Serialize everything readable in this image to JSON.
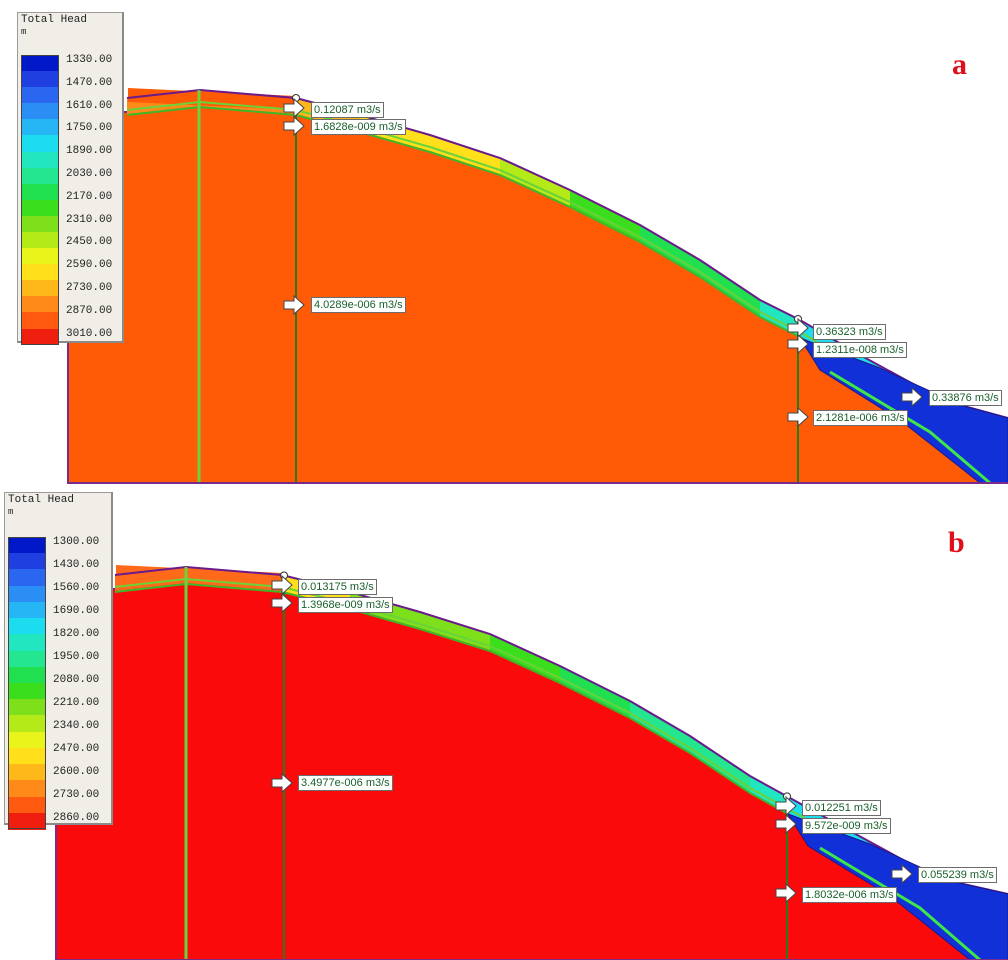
{
  "panels": [
    {
      "letter": "a",
      "legend": {
        "title": "Total Head",
        "unit": "m",
        "colors": [
          "#0018c8",
          "#1f3fe0",
          "#2b66f0",
          "#2a8ef5",
          "#26b6f6",
          "#1cdcf0",
          "#22e6c0",
          "#24e690",
          "#20e050",
          "#3ade1c",
          "#7ee01a",
          "#b4ea18",
          "#e8f41a",
          "#ffe01a",
          "#ffb81a",
          "#ff8a1a",
          "#ff5a10",
          "#f01e0e"
        ],
        "values": [
          "1330.00",
          "1470.00",
          "1610.00",
          "1750.00",
          "1890.00",
          "2030.00",
          "2170.00",
          "2310.00",
          "2450.00",
          "2590.00",
          "2730.00",
          "2870.00",
          "3010.00"
        ]
      },
      "fluxes": [
        "0.12087 m3/s",
        "1.6828e-009 m3/s",
        "4.0289e-006 m3/s",
        "0.36323 m3/s",
        "1.2311e-008 m3/s",
        "0.33876 m3/s",
        "2.1281e-006 m3/s"
      ],
      "main_fill": "#ff5a06",
      "cap_fill": "#ff5a06"
    },
    {
      "letter": "b",
      "legend": {
        "title": "Total Head",
        "unit": "m",
        "colors": [
          "#0018c8",
          "#1f3fe0",
          "#2b66f0",
          "#2a8ef5",
          "#26b6f6",
          "#1cdcf0",
          "#22e6c0",
          "#24e690",
          "#20e050",
          "#3ade1c",
          "#7ee01a",
          "#b4ea18",
          "#e8f41a",
          "#ffe01a",
          "#ffb81a",
          "#ff8a1a",
          "#ff5a10",
          "#f01e0e"
        ],
        "values": [
          "1300.00",
          "1430.00",
          "1560.00",
          "1690.00",
          "1820.00",
          "1950.00",
          "2080.00",
          "2210.00",
          "2340.00",
          "2470.00",
          "2600.00",
          "2730.00",
          "2860.00"
        ]
      },
      "fluxes": [
        "0.013175 m3/s",
        "1.3968e-009 m3/s",
        "3.4977e-006 m3/s",
        "0.012251 m3/s",
        "9.572e-009 m3/s",
        "0.055239 m3/s",
        "1.8032e-006 m3/s"
      ],
      "main_fill": "#fa0a0a",
      "cap_fill": "#ff6a1a"
    }
  ]
}
